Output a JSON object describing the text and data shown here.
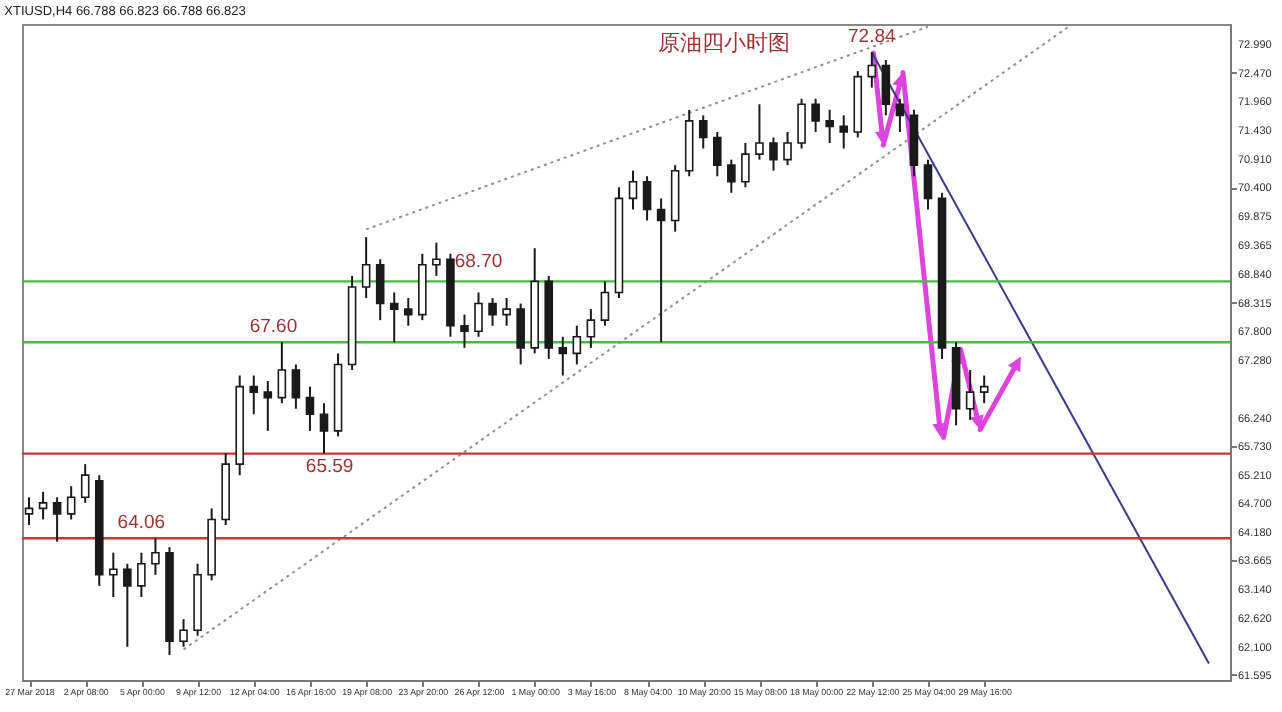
{
  "chart_data": {
    "type": "candlestick",
    "title": "XTIUSD,H4  66.788 66.823 66.788 66.823",
    "color": "#1a1a1a",
    "categories": [
      "27 Mar 2018",
      null,
      null,
      null,
      "2 Apr 08:00",
      null,
      null,
      null,
      "5 Apr 00:00",
      null,
      null,
      null,
      "9 Apr 12:00",
      null,
      null,
      null,
      "12 Apr 04:00",
      null,
      null,
      null,
      "16 Apr 16:00",
      null,
      null,
      null,
      "19 Apr 08:00",
      null,
      null,
      null,
      "23 Apr 20:00",
      null,
      null,
      null,
      "26 Apr 12:00",
      null,
      null,
      null,
      "1 May 00:00",
      null,
      null,
      null,
      "3 May 16:00",
      null,
      null,
      null,
      "8 May 04:00",
      null,
      null,
      null,
      "10 May 20:00",
      null,
      null,
      null,
      "15 May 08:00",
      null,
      null,
      null,
      "18 May 00:00",
      null,
      null,
      null,
      "22 May 12:00",
      null,
      null,
      null,
      "25 May 04:00",
      null,
      null,
      null,
      "29 May 16:00",
      null,
      null,
      null,
      null,
      null,
      null,
      null,
      null,
      null,
      null,
      null,
      null,
      null,
      null,
      null,
      null,
      null
    ],
    "ohlc": [
      [
        64.5,
        64.8,
        64.3,
        64.6
      ],
      [
        64.6,
        64.9,
        64.4,
        64.7
      ],
      [
        64.7,
        64.8,
        64.0,
        64.5
      ],
      [
        64.5,
        65.0,
        64.4,
        64.8
      ],
      [
        64.8,
        65.4,
        64.7,
        65.2
      ],
      [
        65.1,
        65.2,
        63.2,
        63.4
      ],
      [
        63.4,
        63.8,
        63.0,
        63.5
      ],
      [
        63.5,
        63.6,
        62.1,
        63.2
      ],
      [
        63.2,
        63.8,
        63.0,
        63.6
      ],
      [
        63.6,
        64.06,
        63.4,
        63.8
      ],
      [
        63.8,
        63.9,
        61.95,
        62.2
      ],
      [
        62.2,
        62.6,
        62.1,
        62.4
      ],
      [
        62.4,
        63.6,
        62.3,
        63.4
      ],
      [
        63.4,
        64.6,
        63.3,
        64.4
      ],
      [
        64.4,
        65.6,
        64.3,
        65.4
      ],
      [
        65.4,
        67.0,
        65.2,
        66.8
      ],
      [
        66.8,
        67.0,
        66.3,
        66.7
      ],
      [
        66.7,
        66.9,
        66.0,
        66.6
      ],
      [
        66.6,
        67.6,
        66.5,
        67.1
      ],
      [
        67.1,
        67.2,
        66.4,
        66.6
      ],
      [
        66.6,
        66.8,
        66.0,
        66.3
      ],
      [
        66.3,
        66.5,
        65.59,
        66.0
      ],
      [
        66.0,
        67.4,
        65.9,
        67.2
      ],
      [
        67.2,
        68.8,
        67.1,
        68.6
      ],
      [
        68.6,
        69.5,
        68.4,
        69.0
      ],
      [
        69.0,
        69.1,
        68.0,
        68.3
      ],
      [
        68.3,
        68.5,
        67.6,
        68.2
      ],
      [
        68.2,
        68.4,
        67.9,
        68.1
      ],
      [
        68.1,
        69.2,
        68.0,
        69.0
      ],
      [
        69.0,
        69.4,
        68.8,
        69.1
      ],
      [
        69.1,
        69.2,
        67.7,
        67.9
      ],
      [
        67.9,
        68.1,
        67.5,
        67.8
      ],
      [
        67.8,
        68.5,
        67.7,
        68.3
      ],
      [
        68.3,
        68.4,
        67.9,
        68.1
      ],
      [
        68.1,
        68.4,
        67.9,
        68.2
      ],
      [
        68.2,
        68.3,
        67.2,
        67.5
      ],
      [
        67.5,
        69.3,
        67.4,
        68.7
      ],
      [
        68.7,
        68.8,
        67.3,
        67.5
      ],
      [
        67.5,
        67.7,
        67.0,
        67.4
      ],
      [
        67.4,
        67.9,
        67.2,
        67.7
      ],
      [
        67.7,
        68.2,
        67.5,
        68.0
      ],
      [
        68.0,
        68.7,
        67.9,
        68.5
      ],
      [
        68.5,
        70.4,
        68.4,
        70.2
      ],
      [
        70.2,
        70.7,
        70.0,
        70.5
      ],
      [
        70.5,
        70.6,
        69.8,
        70.0
      ],
      [
        70.0,
        70.2,
        67.6,
        69.8
      ],
      [
        69.8,
        70.8,
        69.6,
        70.7
      ],
      [
        70.7,
        71.8,
        70.6,
        71.6
      ],
      [
        71.6,
        71.7,
        71.1,
        71.3
      ],
      [
        71.3,
        71.4,
        70.6,
        70.8
      ],
      [
        70.8,
        70.9,
        70.3,
        70.5
      ],
      [
        70.5,
        71.2,
        70.4,
        71.0
      ],
      [
        71.0,
        71.9,
        70.9,
        71.2
      ],
      [
        71.2,
        71.3,
        70.7,
        70.9
      ],
      [
        70.9,
        71.4,
        70.8,
        71.2
      ],
      [
        71.2,
        72.0,
        71.1,
        71.9
      ],
      [
        71.9,
        72.0,
        71.4,
        71.6
      ],
      [
        71.6,
        71.8,
        71.2,
        71.5
      ],
      [
        71.5,
        71.7,
        71.1,
        71.4
      ],
      [
        71.4,
        72.5,
        71.3,
        72.4
      ],
      [
        72.4,
        72.84,
        72.2,
        72.6
      ],
      [
        72.6,
        72.7,
        71.7,
        71.9
      ],
      [
        71.9,
        72.0,
        71.4,
        71.7
      ],
      [
        71.7,
        71.8,
        70.6,
        70.8
      ],
      [
        70.8,
        70.9,
        70.0,
        70.2
      ],
      [
        70.2,
        70.3,
        67.3,
        67.5
      ],
      [
        67.5,
        67.6,
        66.1,
        66.4
      ],
      [
        66.4,
        67.1,
        66.2,
        66.7
      ],
      [
        66.7,
        67.0,
        66.5,
        66.8
      ],
      null,
      null,
      null,
      null,
      null,
      null,
      null,
      null,
      null,
      null,
      null,
      null,
      null,
      null,
      null,
      null,
      null
    ],
    "series": [
      {
        "type": "line",
        "values": [
          null,
          null,
          null,
          null,
          null,
          null,
          null,
          null,
          null,
          null,
          null,
          null,
          null,
          null,
          null,
          null,
          null,
          null,
          null,
          null,
          null,
          null,
          null,
          null,
          69.64,
          null,
          null,
          null,
          null,
          null,
          null,
          null,
          null,
          null,
          null,
          null,
          null,
          null,
          null,
          null,
          null,
          null,
          null,
          null,
          null,
          null,
          null,
          null,
          null,
          null,
          null,
          null,
          null,
          null,
          null,
          null,
          null,
          null,
          null,
          null,
          null,
          null,
          null,
          null,
          73.3,
          null,
          null,
          null,
          null,
          null,
          null,
          null,
          null,
          null,
          null,
          null,
          null,
          null,
          null,
          null,
          null,
          null,
          null,
          null,
          null,
          null
        ],
        "color": "#909090",
        "line_style": "dotted"
      },
      {
        "type": "line",
        "values": [
          null,
          null,
          null,
          null,
          null,
          null,
          null,
          null,
          null,
          null,
          null,
          62.05,
          null,
          null,
          null,
          null,
          null,
          null,
          null,
          null,
          null,
          null,
          null,
          null,
          null,
          null,
          null,
          null,
          null,
          null,
          null,
          null,
          null,
          null,
          null,
          null,
          null,
          null,
          null,
          null,
          null,
          null,
          null,
          null,
          null,
          null,
          null,
          null,
          null,
          null,
          null,
          null,
          null,
          null,
          null,
          null,
          null,
          null,
          null,
          null,
          null,
          null,
          null,
          null,
          null,
          null,
          null,
          null,
          null,
          null,
          null,
          null,
          null,
          null,
          73.3,
          null,
          null,
          null,
          null,
          null,
          null,
          null,
          null,
          null,
          null,
          null
        ],
        "color": "#909090",
        "line_style": "dotted"
      },
      {
        "type": "line",
        "values": [
          null,
          null,
          null,
          null,
          null,
          null,
          null,
          null,
          null,
          null,
          null,
          null,
          null,
          null,
          null,
          null,
          null,
          null,
          null,
          null,
          null,
          null,
          null,
          null,
          null,
          null,
          null,
          null,
          null,
          null,
          null,
          null,
          null,
          null,
          null,
          null,
          null,
          null,
          null,
          null,
          null,
          null,
          null,
          null,
          null,
          null,
          null,
          null,
          null,
          null,
          null,
          null,
          null,
          null,
          null,
          null,
          null,
          null,
          null,
          null,
          72.84,
          null,
          null,
          null,
          null,
          null,
          null,
          null,
          null,
          null,
          null,
          null,
          null,
          null,
          null,
          null,
          null,
          null,
          null,
          null,
          null,
          null,
          null,
          null,
          61.8,
          null
        ],
        "color": "#3a3a8a",
        "line_style": "solid"
      }
    ],
    "ref_lines": [
      {
        "axis": "y",
        "value": 68.7,
        "color": "#44bb44"
      },
      {
        "axis": "y",
        "value": 67.6,
        "color": "#44bb44"
      },
      {
        "axis": "y",
        "value": 65.59,
        "color": "#cc3333"
      },
      {
        "axis": "y",
        "value": 64.06,
        "color": "#cc3333"
      }
    ],
    "annotations": [
      "原油四小时图",
      {
        "text": "72.84",
        "x": "22 May 12:00",
        "y": 72.84
      },
      {
        "text": "68.70",
        "y": 68.7
      },
      {
        "text": "67.60",
        "y": 67.6
      },
      {
        "text": "65.59",
        "y": 65.59
      },
      {
        "text": "64.06",
        "x": "5 Apr 00:00",
        "y": 64.06
      }
    ],
    "ylim": [
      61.5,
      73.35
    ],
    "yticks": [
      {
        "value": 72.99,
        "label": "72.990"
      },
      {
        "value": 72.47,
        "label": "72.470"
      },
      {
        "value": 71.96,
        "label": "71.960"
      },
      {
        "value": 71.43,
        "label": "71.430"
      },
      {
        "value": 70.91,
        "label": "70.910"
      },
      {
        "value": 70.4,
        "label": "70.400"
      },
      69.875,
      69.365,
      {
        "value": 68.84,
        "label": "68.840"
      },
      68.315,
      {
        "value": 67.8,
        "label": "67.800"
      },
      {
        "value": 67.28,
        "label": "67.280"
      },
      {
        "value": 66.24,
        "label": "66.240"
      },
      {
        "value": 65.73,
        "label": "65.730"
      },
      {
        "value": 65.21,
        "label": "65.210"
      },
      {
        "value": 64.7,
        "label": "64.700"
      },
      {
        "value": 64.18,
        "label": "64.180"
      },
      63.665,
      {
        "value": 63.14,
        "label": "63.140"
      },
      {
        "value": 62.62,
        "label": "62.620"
      },
      {
        "value": 62.1,
        "label": "62.100"
      },
      61.595
    ]
  }
}
